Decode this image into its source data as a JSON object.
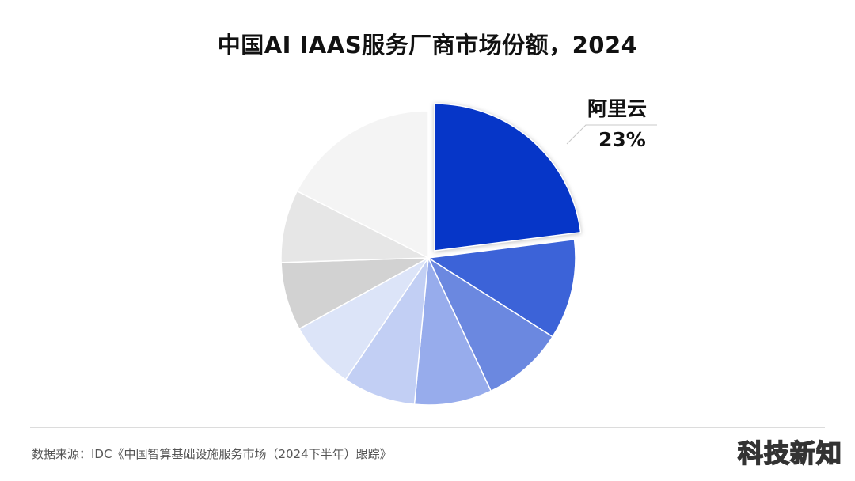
{
  "chart_data": {
    "type": "pie",
    "title": "中国AI IAAS服务厂商市场份额，2024",
    "slices": [
      {
        "label": "阿里云",
        "value": 23,
        "value_label": "23%",
        "color": "#0636c8",
        "exploded": true
      },
      {
        "label": "",
        "value": 11,
        "color": "#3c63d8"
      },
      {
        "label": "",
        "value": 9,
        "color": "#6b88e0"
      },
      {
        "label": "",
        "value": 8.5,
        "color": "#97acec"
      },
      {
        "label": "",
        "value": 8,
        "color": "#c2cff4"
      },
      {
        "label": "",
        "value": 7.5,
        "color": "#dce4f8"
      },
      {
        "label": "",
        "value": 7.5,
        "color": "#d2d2d2"
      },
      {
        "label": "",
        "value": 8,
        "color": "#e6e6e6"
      },
      {
        "label": "",
        "value": 17.5,
        "color": "#f4f4f4"
      }
    ],
    "start_angle_deg": 0,
    "direction": "clockwise",
    "legend": "none"
  },
  "source": "数据来源：IDC《中国智算基础设施服务市场（2024下半年）跟踪》",
  "watermark": "科技新知"
}
